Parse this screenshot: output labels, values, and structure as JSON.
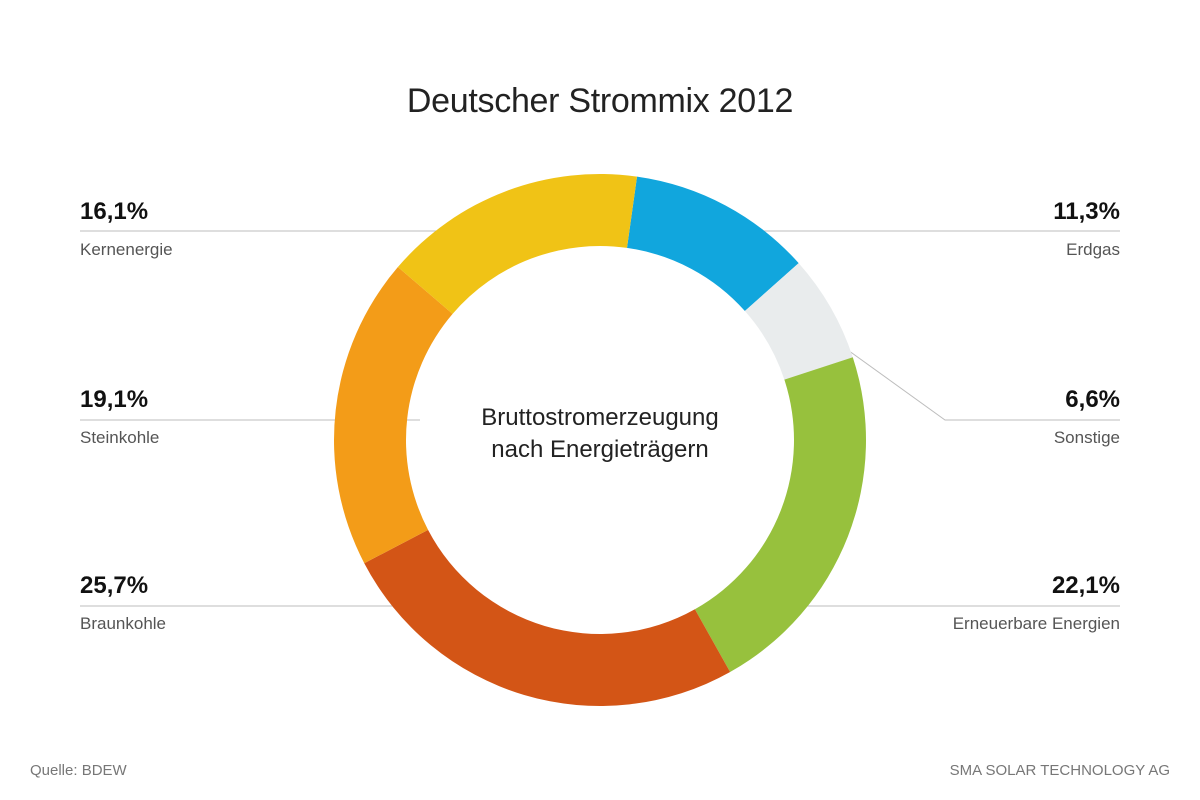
{
  "title": "Deutscher Strommix 2012",
  "center_label_line1": "Bruttostromerzeugung",
  "center_label_line2": "nach Energieträgern",
  "source": "Quelle: BDEW",
  "credit": "SMA SOLAR TECHNOLOGY AG",
  "chart_data": {
    "type": "pie",
    "donut": true,
    "title": "Deutscher Strommix 2012",
    "segments": [
      {
        "name": "Erdgas",
        "value": 11.3,
        "label": "11,3%",
        "color": "#11a6dd"
      },
      {
        "name": "Sonstige",
        "value": 6.6,
        "label": "6,6%",
        "color": "#e9eced"
      },
      {
        "name": "Erneuerbare Energien",
        "value": 22.1,
        "label": "22,1%",
        "color": "#97c13d"
      },
      {
        "name": "Braunkohle",
        "value": 25.7,
        "label": "25,7%",
        "color": "#d35516"
      },
      {
        "name": "Steinkohle",
        "value": 19.1,
        "label": "19,1%",
        "color": "#f39c18"
      },
      {
        "name": "Kernenergie",
        "value": 16.1,
        "label": "16,1%",
        "color": "#f0c316"
      }
    ]
  }
}
